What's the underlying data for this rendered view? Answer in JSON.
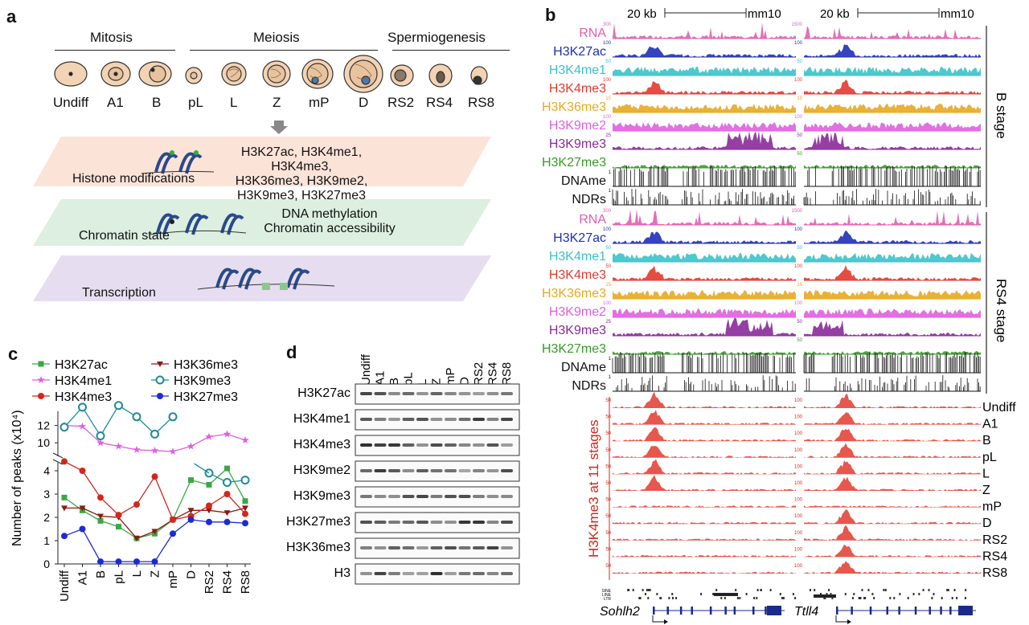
{
  "panel_a": {
    "letter": "a",
    "phases": [
      "Mitosis",
      "Meiosis",
      "Spermiogenesis"
    ],
    "stages": [
      "Undiff",
      "A1",
      "B",
      "pL",
      "L",
      "Z",
      "mP",
      "D",
      "RS2",
      "RS4",
      "RS8"
    ],
    "layers": [
      {
        "title": "Histone modifications",
        "text": [
          "H3K27ac, H3K4me1, H3K4me3,",
          "H3K36me3, H3K9me2,",
          "H3K9me3, H3K27me3"
        ],
        "color": "#fbe3d8"
      },
      {
        "title": "Chromatin state",
        "text": [
          "DNA methylation",
          "Chromatin accessibility"
        ],
        "color": "#dcefe0"
      },
      {
        "title": "Transcription",
        "text": [],
        "color": "#e6def0"
      }
    ]
  },
  "panel_b": {
    "letter": "b",
    "scale_label": "20 kb",
    "genome": "mm10",
    "groups": [
      {
        "stage_label": "B stage",
        "tracks": [
          {
            "name": "RNA",
            "color": "#e05fb0",
            "left_scale": "300",
            "right_scale": "1500"
          },
          {
            "name": "H3K27ac",
            "color": "#1f2fb8",
            "left_scale": "100",
            "right_scale": "100"
          },
          {
            "name": "H3K4me1",
            "color": "#39c3c9",
            "left_scale": "50",
            "right_scale": "50"
          },
          {
            "name": "H3K4me3",
            "color": "#e23a2e",
            "left_scale": "100",
            "right_scale": "100"
          },
          {
            "name": "H3K36me3",
            "color": "#e8a91f",
            "left_scale": "15",
            "right_scale": "15"
          },
          {
            "name": "H3K9me2",
            "color": "#e05fe0",
            "left_scale": "100",
            "right_scale": "100"
          },
          {
            "name": "H3K9me3",
            "color": "#8a2a9a",
            "left_scale": "25",
            "right_scale": "50"
          },
          {
            "name": "H3K27me3",
            "color": "#3a9a2a",
            "left_scale": "",
            "right_scale": "50"
          },
          {
            "name": "DNAme",
            "color": "#111111",
            "left_scale": "1",
            "right_scale": ""
          },
          {
            "name": "NDRs",
            "color": "#111111",
            "left_scale": "1",
            "right_scale": ""
          }
        ]
      },
      {
        "stage_label": "RS4 stage",
        "tracks": [
          {
            "name": "RNA",
            "color": "#e05fb0",
            "left_scale": "300",
            "right_scale": "1500"
          },
          {
            "name": "H3K27ac",
            "color": "#1f2fb8",
            "left_scale": "100",
            "right_scale": "100"
          },
          {
            "name": "H3K4me1",
            "color": "#39c3c9",
            "left_scale": "50",
            "right_scale": "50"
          },
          {
            "name": "H3K4me3",
            "color": "#e23a2e",
            "left_scale": "50",
            "right_scale": "100"
          },
          {
            "name": "H3K36me3",
            "color": "#e8a91f",
            "left_scale": "15",
            "right_scale": "15"
          },
          {
            "name": "H3K9me2",
            "color": "#e05fe0",
            "left_scale": "100",
            "right_scale": "100"
          },
          {
            "name": "H3K9me3",
            "color": "#8a2a9a",
            "left_scale": "25",
            "right_scale": "50"
          },
          {
            "name": "H3K27me3",
            "color": "#3a9a2a",
            "left_scale": "",
            "right_scale": "50"
          },
          {
            "name": "DNAme",
            "color": "#111111",
            "left_scale": "1",
            "right_scale": ""
          },
          {
            "name": "NDRs",
            "color": "#111111",
            "left_scale": "1",
            "right_scale": ""
          }
        ]
      }
    ],
    "h3k4me3_axis_label": "H3K4me3 at 11 stages",
    "h3k4me3_scale": "50",
    "h3k4me3_scale_right": "100",
    "stages": [
      "Undiff",
      "A1",
      "B",
      "pL",
      "L",
      "Z",
      "mP",
      "D",
      "RS2",
      "RS4",
      "RS8"
    ],
    "repeat_labels": [
      "SINE",
      "LINE",
      "LTR"
    ],
    "genes": [
      "Sohlh2",
      "Ttll4"
    ]
  },
  "panel_c": {
    "letter": "c",
    "legend": [
      "H3K27ac",
      "H3K36me3",
      "H3K4me1",
      "H3K9me3",
      "H3K4me3",
      "H3K27me3"
    ]
  },
  "chart_data": {
    "type": "line",
    "ylabel": "Number of peaks (x10⁴)",
    "categories": [
      "Undiff",
      "A1",
      "B",
      "pL",
      "L",
      "Z",
      "mP",
      "D",
      "RS2",
      "RS4",
      "RS8"
    ],
    "y_ticks_lower": [
      0,
      1,
      2,
      3,
      4
    ],
    "y_ticks_upper": [
      10,
      12
    ],
    "axis_break": true,
    "series": [
      {
        "name": "H3K27ac",
        "color": "#3aa845",
        "marker": "square",
        "values": [
          2.85,
          2.3,
          1.85,
          1.6,
          1.1,
          1.3,
          1.9,
          3.6,
          3.4,
          4.1,
          2.7
        ]
      },
      {
        "name": "H3K36me3",
        "color": "#8a1a12",
        "marker": "triangle-down",
        "values": [
          2.4,
          2.4,
          2.05,
          2.0,
          1.1,
          1.4,
          1.9,
          2.3,
          2.3,
          2.2,
          2.4
        ]
      },
      {
        "name": "H3K4me1",
        "color": "#e05fe0",
        "marker": "star",
        "values": [
          12.0,
          11.9,
          10.0,
          9.6,
          9.2,
          9.1,
          9.0,
          9.6,
          10.7,
          11.0,
          10.3
        ]
      },
      {
        "name": "H3K9me3",
        "color": "#1f8a9a",
        "marker": "circle-open",
        "values": [
          11.8,
          14.1,
          10.8,
          14.3,
          13.0,
          11.0,
          13.0,
          null,
          3.9,
          3.5,
          3.6
        ]
      },
      {
        "name": "H3K4me3",
        "color": "#d4261c",
        "marker": "circle",
        "values": [
          4.4,
          4.0,
          2.85,
          2.1,
          2.55,
          3.75,
          1.9,
          2.05,
          2.5,
          3.0,
          2.15
        ]
      },
      {
        "name": "H3K27me3",
        "color": "#1c2cd0",
        "marker": "circle",
        "values": [
          1.2,
          1.5,
          0.1,
          0.1,
          0.1,
          0.1,
          1.3,
          1.9,
          1.8,
          1.8,
          1.75
        ]
      }
    ]
  },
  "panel_d": {
    "letter": "d",
    "lanes": [
      "Undiff",
      "A1",
      "B",
      "pL",
      "L",
      "Z",
      "mP",
      "D",
      "RS2",
      "RS4",
      "RS8"
    ],
    "blots": [
      "H3K27ac",
      "H3K4me1",
      "H3K4me3",
      "H3K9me2",
      "H3K9me3",
      "H3K27me3",
      "H3K36me3",
      "H3"
    ]
  }
}
